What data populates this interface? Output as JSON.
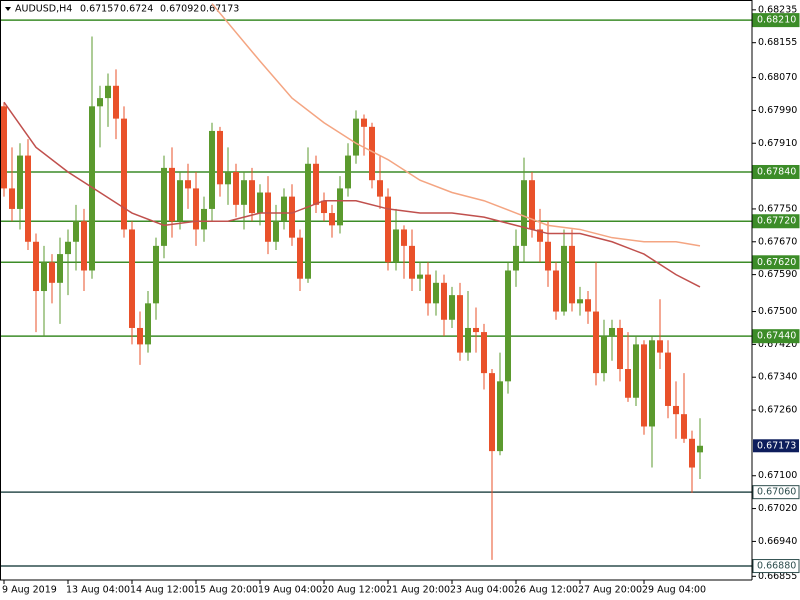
{
  "chart_data": {
    "type": "candlestick",
    "symbol": "AUDUSD,H4",
    "up_color": "#5b9a2e",
    "down_color": "#e9512a",
    "ylim": [
      0.66846,
      0.68259
    ],
    "yticks": [
      0.68235,
      0.68155,
      {
        "value": 0.6807,
        "label": "0.68070"
      },
      {
        "value": 0.6799,
        "label": "0.67990"
      },
      {
        "value": 0.6791,
        "label": "0.67910"
      },
      {
        "value": 0.6775,
        "label": "0.67750"
      },
      {
        "value": 0.6767,
        "label": "0.67670"
      },
      {
        "value": 0.6759,
        "label": "0.67590"
      },
      {
        "value": 0.675,
        "label": "0.67500"
      },
      {
        "value": 0.6742,
        "label": "0.67420"
      },
      {
        "value": 0.6734,
        "label": "0.67340"
      },
      {
        "value": 0.6726,
        "label": "0.67260"
      },
      {
        "value": 0.671,
        "label": "0.67100"
      },
      {
        "value": 0.6702,
        "label": "0.67020"
      },
      {
        "value": 0.6694,
        "label": "0.66940"
      },
      0.66855
    ],
    "categories": [
      "9 Aug 2019",
      null,
      null,
      null,
      null,
      null,
      null,
      null,
      "13 Aug 04:00",
      null,
      null,
      null,
      null,
      null,
      null,
      null,
      "14 Aug 12:00",
      null,
      null,
      null,
      null,
      null,
      null,
      null,
      "15 Aug 20:00",
      null,
      null,
      null,
      null,
      null,
      null,
      null,
      "19 Aug 04:00",
      null,
      null,
      null,
      null,
      null,
      null,
      null,
      "20 Aug 12:00",
      null,
      null,
      null,
      null,
      null,
      null,
      null,
      "21 Aug 20:00",
      null,
      null,
      null,
      null,
      null,
      null,
      null,
      "23 Aug 04:00",
      null,
      null,
      null,
      null,
      null,
      null,
      null,
      "26 Aug 12:00",
      null,
      null,
      null,
      null,
      null,
      null,
      null,
      "27 Aug 20:00",
      null,
      null,
      null,
      null,
      null,
      null,
      null,
      "29 Aug 04:00",
      null,
      null,
      null,
      null,
      null,
      null,
      null
    ],
    "candles": {
      "open": [
        0.68,
        0.678,
        0.6775,
        0.6788,
        0.6767,
        0.6755,
        0.6762,
        0.6757,
        0.6764,
        0.6767,
        0.6772,
        0.676,
        0.68,
        0.6802,
        0.6805,
        0.6797,
        0.677,
        0.6746,
        0.6742,
        0.6752,
        0.6766,
        0.6785,
        0.6772,
        0.6782,
        0.678,
        0.677,
        0.6775,
        0.6794,
        0.6781,
        0.6784,
        0.6776,
        0.6782,
        0.6774,
        0.6779,
        0.6767,
        0.6772,
        0.6778,
        0.6768,
        0.6758,
        0.6786,
        0.6777,
        0.6774,
        0.6771,
        0.678,
        0.6788,
        0.6797,
        0.6795,
        0.6782,
        0.6778,
        0.6762,
        0.677,
        0.6766,
        0.6758,
        0.6759,
        0.6752,
        0.6757,
        0.6748,
        0.6754,
        0.674,
        0.6746,
        0.6745,
        0.6735,
        0.6716,
        0.6733,
        0.676,
        0.6766,
        0.6782,
        0.677,
        0.6767,
        0.676,
        0.675,
        0.6766,
        0.6752,
        0.6753,
        0.675,
        0.6735,
        0.6744,
        0.6746,
        0.6736,
        0.6729,
        0.6742,
        0.6722,
        0.6743,
        0.674,
        0.6727,
        0.6725,
        0.6719,
        0.67157
      ],
      "high": [
        0.6801,
        0.679,
        0.6791,
        0.6792,
        0.6769,
        0.6766,
        0.6764,
        0.6768,
        0.677,
        0.6776,
        0.6775,
        0.6817,
        0.6805,
        0.6808,
        0.6809,
        0.68,
        0.6772,
        0.675,
        0.6755,
        0.6768,
        0.6788,
        0.679,
        0.6784,
        0.6786,
        0.6784,
        0.6778,
        0.6796,
        0.6795,
        0.679,
        0.6786,
        0.6784,
        0.6785,
        0.6781,
        0.6783,
        0.6776,
        0.678,
        0.6781,
        0.677,
        0.679,
        0.6788,
        0.6779,
        0.6776,
        0.6783,
        0.6791,
        0.6799,
        0.6798,
        0.6796,
        0.6788,
        0.678,
        0.6775,
        0.6771,
        0.677,
        0.6762,
        0.6762,
        0.676,
        0.6759,
        0.6756,
        0.6757,
        0.6755,
        0.6751,
        0.6747,
        0.6736,
        0.674,
        0.6762,
        0.677,
        0.67875,
        0.6784,
        0.6775,
        0.6772,
        0.6762,
        0.677,
        0.677,
        0.6756,
        0.6755,
        0.6762,
        0.6748,
        0.6748,
        0.6748,
        0.6745,
        0.6744,
        0.6743,
        0.6744,
        0.6753,
        0.6743,
        0.6733,
        0.6735,
        0.6721,
        0.6724
      ],
      "low": [
        0.6778,
        0.6772,
        0.677,
        0.6765,
        0.6745,
        0.6744,
        0.6752,
        0.6747,
        0.6754,
        0.676,
        0.6755,
        0.6758,
        0.679,
        0.6795,
        0.6792,
        0.6768,
        0.6742,
        0.6737,
        0.674,
        0.6748,
        0.6763,
        0.6768,
        0.677,
        0.6775,
        0.6766,
        0.6767,
        0.6772,
        0.6778,
        0.6776,
        0.6773,
        0.677,
        0.6772,
        0.6771,
        0.6764,
        0.6765,
        0.677,
        0.6766,
        0.6755,
        0.6757,
        0.6774,
        0.6772,
        0.6768,
        0.6769,
        0.6778,
        0.6786,
        0.6788,
        0.678,
        0.6775,
        0.676,
        0.676,
        0.6758,
        0.6755,
        0.6755,
        0.6749,
        0.6749,
        0.6744,
        0.6746,
        0.6738,
        0.6738,
        0.674,
        0.6731,
        0.66895,
        0.6715,
        0.673,
        0.6756,
        0.6762,
        0.6768,
        0.6762,
        0.6756,
        0.6748,
        0.6749,
        0.675,
        0.6749,
        0.6747,
        0.6732,
        0.6733,
        0.6738,
        0.6733,
        0.6728,
        0.6727,
        0.672,
        0.6712,
        0.6736,
        0.6724,
        0.6719,
        0.6718,
        0.67058,
        0.67092
      ],
      "close": [
        0.678,
        0.6775,
        0.6788,
        0.6767,
        0.6755,
        0.6762,
        0.6757,
        0.6764,
        0.6767,
        0.6772,
        0.676,
        0.68,
        0.6802,
        0.6805,
        0.6797,
        0.677,
        0.6746,
        0.6742,
        0.6752,
        0.6766,
        0.6785,
        0.6772,
        0.6782,
        0.678,
        0.677,
        0.6775,
        0.6794,
        0.6781,
        0.6784,
        0.6776,
        0.6782,
        0.6774,
        0.6779,
        0.6767,
        0.6772,
        0.6778,
        0.6768,
        0.6758,
        0.6786,
        0.6776,
        0.6774,
        0.6771,
        0.678,
        0.6788,
        0.6797,
        0.6795,
        0.6782,
        0.6778,
        0.6762,
        0.677,
        0.6766,
        0.6758,
        0.6759,
        0.6752,
        0.6757,
        0.6748,
        0.6754,
        0.674,
        0.6746,
        0.6745,
        0.6735,
        0.6716,
        0.6733,
        0.676,
        0.6766,
        0.6782,
        0.677,
        0.6767,
        0.676,
        0.675,
        0.6766,
        0.6752,
        0.6753,
        0.675,
        0.6735,
        0.6744,
        0.6746,
        0.6736,
        0.6729,
        0.6742,
        0.6722,
        0.6743,
        0.674,
        0.6727,
        0.6725,
        0.6719,
        0.6712,
        0.67173
      ]
    },
    "moving_averages": [
      {
        "color": "#c0504d",
        "x": [
          0,
          4,
          8,
          12,
          16,
          20,
          24,
          28,
          32,
          36,
          40,
          44,
          48,
          52,
          56,
          60,
          64,
          68,
          72,
          76,
          80,
          84,
          87
        ],
        "values": [
          0.6801,
          0.679,
          0.6784,
          0.6779,
          0.6774,
          0.6771,
          0.6772,
          0.6772,
          0.6774,
          0.6774,
          0.6777,
          0.6777,
          0.6775,
          0.6774,
          0.6774,
          0.6773,
          0.6771,
          0.6769,
          0.6769,
          0.6767,
          0.6764,
          0.6759,
          0.6756
        ]
      },
      {
        "color": "#f4a582",
        "x": [
          26,
          32,
          36,
          40,
          44,
          48,
          52,
          56,
          60,
          64,
          68,
          72,
          76,
          80,
          84,
          87
        ],
        "values": [
          0.6825,
          0.6811,
          0.6802,
          0.6796,
          0.6791,
          0.6787,
          0.6782,
          0.6779,
          0.6777,
          0.6774,
          0.6771,
          0.677,
          0.6768,
          0.6767,
          0.6767,
          0.6766
        ]
      }
    ],
    "levels": [
      {
        "value": 0.6821,
        "label": "0.68210",
        "color": "#3c8c28"
      },
      {
        "value": 0.6784,
        "label": "0.67840",
        "color": "#3c8c28"
      },
      {
        "value": 0.6772,
        "label": "0.67720",
        "color": "#3c8c28"
      },
      {
        "value": 0.6762,
        "label": "0.67620",
        "color": "#3c8c28"
      },
      {
        "value": 0.6744,
        "label": "0.67440",
        "color": "#3c8c28"
      },
      {
        "value": 0.6706,
        "label": "0.67060",
        "color": "#2f4f4f"
      },
      {
        "value": 0.6688,
        "label": "0.66880",
        "color": "#2f4f4f"
      }
    ],
    "price_color": "#0d1d5c"
  }
}
